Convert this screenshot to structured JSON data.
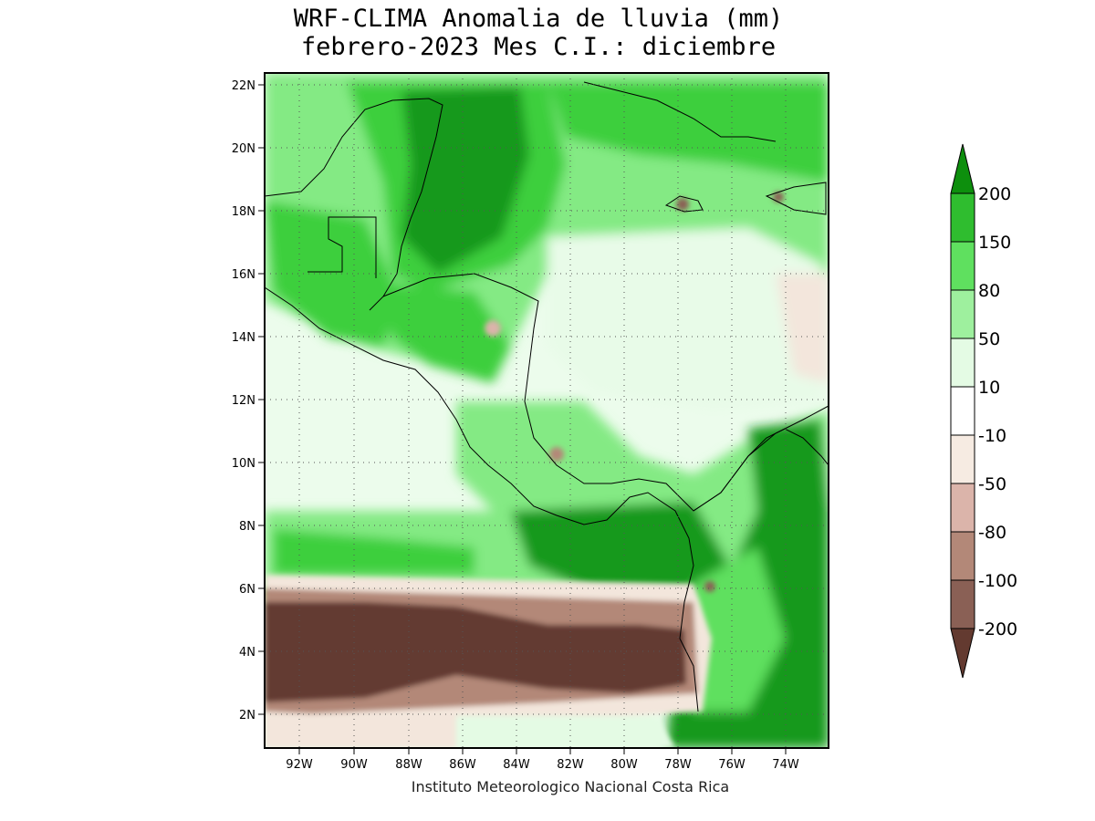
{
  "title": {
    "line1": "WRF-CLIMA Anomalia de lluvia (mm)",
    "line2": "febrero-2023 Mes C.I.: diciembre"
  },
  "credit": "Instituto Meteorologico Nacional Costa Rica",
  "map": {
    "lon_ticks": [
      "92W",
      "90W",
      "88W",
      "86W",
      "84W",
      "82W",
      "80W",
      "78W",
      "76W",
      "74W"
    ],
    "lat_ticks": [
      "22N",
      "20N",
      "18N",
      "16N",
      "14N",
      "12N",
      "10N",
      "8N",
      "6N",
      "4N",
      "2N"
    ],
    "gridlines": "dotted"
  },
  "colorbar": {
    "labels": [
      "200",
      "150",
      "80",
      "50",
      "10",
      "-10",
      "-50",
      "-80",
      "-100",
      "-200"
    ],
    "colors": [
      "#0d8f0d",
      "#2fbd2f",
      "#5fe05f",
      "#9ef09e",
      "#e4fbe4",
      "#ffffff",
      "#f6ebe2",
      "#dbb4aa",
      "#b38878",
      "#8a6055",
      "#633a30"
    ]
  },
  "palette": {
    "strong_green": "#13991a",
    "green": "#3ccf3c",
    "light_green": "#84ea84",
    "pale_green": "#c9f5c9",
    "very_pale_green": "#ecfcec",
    "tan": "#f3e6dc",
    "brown": "#6b4034",
    "coast": "#000000"
  }
}
